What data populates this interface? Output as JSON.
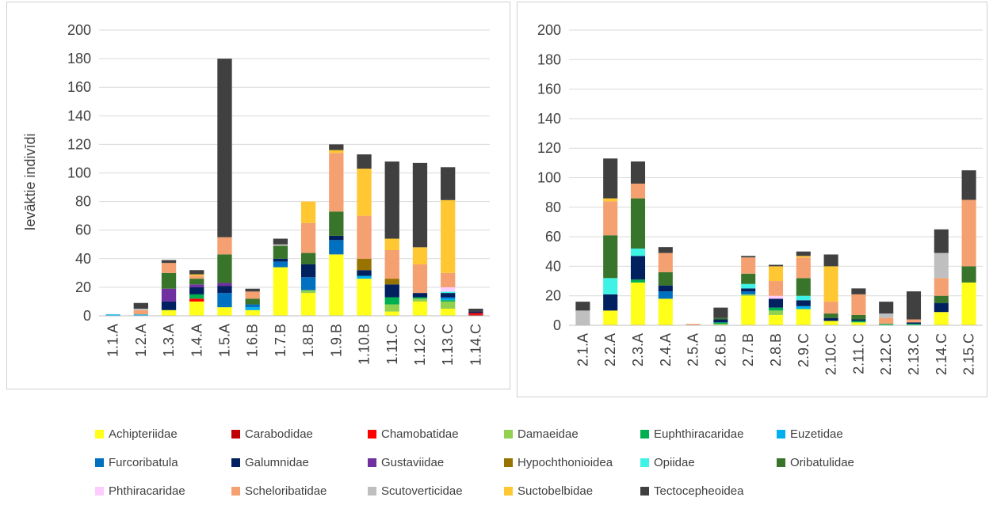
{
  "families": [
    "Achipteriidae",
    "Carabodidae",
    "Chamobatidae",
    "Damaeidae",
    "Euphthiracaridae",
    "Euzetidae",
    "Furcoribatula",
    "Galumnidae",
    "Gustaviidae",
    "Hypochthonioidea",
    "Opiidae",
    "Oribatulidae",
    "Phthiracaridae",
    "Scheloribatidae",
    "Scutoverticidae",
    "Suctobelbidae",
    "Tectocepheoidea"
  ],
  "colors": {
    "Achipteriidae": "#ffff1a",
    "Carabodidae": "#c00000",
    "Chamobatidae": "#ff0000",
    "Damaeidae": "#92d050",
    "Euphthiracaridae": "#00b050",
    "Euzetidae": "#00b0f0",
    "Furcoribatula": "#0070c0",
    "Galumnidae": "#002060",
    "Gustaviidae": "#7030a0",
    "Hypochthonioidea": "#997300",
    "Opiidae": "#3ff2e6",
    "Oribatulidae": "#38752b",
    "Phthiracaridae": "#ffccff",
    "Scheloribatidae": "#f4a070",
    "Scutoverticidae": "#bfbfbf",
    "Suctobelbidae": "#ffc832",
    "Tectocepheoidea": "#404040"
  },
  "chart_data": [
    {
      "type": "bar",
      "stacked": true,
      "title": "",
      "ylabel": "Ievāktie indivīdi",
      "ylim": [
        0,
        200
      ],
      "yticks": [
        0,
        20,
        40,
        60,
        80,
        100,
        120,
        140,
        160,
        180,
        200
      ],
      "grid": true,
      "categories": [
        "1.1.A",
        "1.2.A",
        "1.3.A",
        "1.4.A",
        "1.5.A",
        "1.6.B",
        "1.7.B",
        "1.8.B",
        "1.9.B",
        "1.10.B",
        "1.11.C",
        "1.12.C",
        "1.13.C",
        "1.14.C"
      ],
      "series": [
        {
          "name": "Achipteriidae",
          "values": [
            0,
            0,
            4,
            10,
            6,
            4,
            34,
            16,
            43,
            26,
            3,
            10,
            5,
            0
          ]
        },
        {
          "name": "Carabodidae",
          "values": [
            0,
            0,
            0,
            0,
            0,
            0,
            0,
            0,
            0,
            0,
            0,
            0,
            0,
            1
          ]
        },
        {
          "name": "Chamobatidae",
          "values": [
            0,
            0,
            0,
            2,
            0,
            0,
            0,
            0,
            0,
            0,
            0,
            0,
            0,
            1
          ]
        },
        {
          "name": "Damaeidae",
          "values": [
            0,
            0,
            0,
            0,
            0,
            0,
            0,
            2,
            0,
            0,
            5,
            2,
            5,
            0
          ]
        },
        {
          "name": "Euphthiracaridae",
          "values": [
            0,
            0,
            0,
            3,
            0,
            0,
            0,
            0,
            0,
            0,
            5,
            1,
            1,
            0
          ]
        },
        {
          "name": "Euzetidae",
          "values": [
            1,
            1,
            0,
            0,
            0,
            2,
            0,
            0,
            0,
            2,
            0,
            0,
            1,
            0
          ]
        },
        {
          "name": "Furcoribatula",
          "values": [
            0,
            0,
            0,
            0,
            10,
            2,
            4,
            9,
            10,
            0,
            0,
            0,
            1,
            0
          ]
        },
        {
          "name": "Galumnidae",
          "values": [
            0,
            0,
            6,
            5,
            5,
            0,
            2,
            9,
            3,
            4,
            9,
            3,
            3,
            1
          ]
        },
        {
          "name": "Gustaviidae",
          "values": [
            0,
            0,
            9,
            2,
            2,
            0,
            0,
            0,
            0,
            0,
            0,
            0,
            0,
            0
          ]
        },
        {
          "name": "Hypochthonioidea",
          "values": [
            0,
            0,
            0,
            0,
            0,
            0,
            0,
            0,
            0,
            8,
            4,
            0,
            0,
            0
          ]
        },
        {
          "name": "Opiidae",
          "values": [
            0,
            0,
            0,
            0,
            0,
            0,
            0,
            0,
            0,
            0,
            0,
            0,
            1,
            0
          ]
        },
        {
          "name": "Oribatulidae",
          "values": [
            0,
            0,
            11,
            4,
            20,
            4,
            9,
            8,
            17,
            0,
            0,
            0,
            0,
            0
          ]
        },
        {
          "name": "Phthiracaridae",
          "values": [
            0,
            0,
            0,
            0,
            0,
            0,
            0,
            0,
            0,
            0,
            0,
            0,
            3,
            0
          ]
        },
        {
          "name": "Scheloribatidae",
          "values": [
            0,
            3,
            7,
            2,
            12,
            5,
            0,
            21,
            41,
            30,
            20,
            20,
            10,
            0
          ]
        },
        {
          "name": "Scutoverticidae",
          "values": [
            0,
            1,
            0,
            0,
            0,
            0,
            1,
            0,
            0,
            0,
            0,
            0,
            0,
            0
          ]
        },
        {
          "name": "Suctobelbidae",
          "values": [
            0,
            0,
            0,
            1,
            0,
            0,
            0,
            15,
            2,
            33,
            8,
            12,
            51,
            0
          ]
        },
        {
          "name": "Tectocepheoidea",
          "values": [
            0,
            4,
            2,
            3,
            125,
            2,
            4,
            0,
            4,
            10,
            54,
            59,
            23,
            2
          ]
        }
      ]
    },
    {
      "type": "bar",
      "stacked": true,
      "title": "",
      "ylabel": "",
      "ylim": [
        0,
        200
      ],
      "yticks": [
        0,
        20,
        40,
        60,
        80,
        100,
        120,
        140,
        160,
        180,
        200
      ],
      "grid": true,
      "categories": [
        "2.1.A",
        "2.2.A",
        "2.3.A",
        "2.4.A",
        "2.5.A",
        "2.6.B",
        "2.7.B",
        "2.8.B",
        "2.9.C",
        "2.10.C",
        "2.11.C",
        "2.12.C",
        "2.13.C",
        "2.14.C",
        "2.15.C"
      ],
      "series": [
        {
          "name": "Achipteriidae",
          "values": [
            0,
            10,
            29,
            18,
            0,
            0,
            20,
            7,
            11,
            3,
            2,
            0,
            0,
            9,
            29
          ]
        },
        {
          "name": "Carabodidae",
          "values": [
            0,
            0,
            0,
            0,
            0,
            0,
            0,
            0,
            0,
            0,
            0,
            0,
            0,
            0,
            0
          ]
        },
        {
          "name": "Chamobatidae",
          "values": [
            0,
            0,
            0,
            0,
            0,
            0,
            0,
            0,
            0,
            0,
            0,
            0,
            0,
            0,
            0
          ]
        },
        {
          "name": "Damaeidae",
          "values": [
            0,
            0,
            0,
            0,
            0,
            1,
            1,
            3,
            0,
            0,
            0,
            0,
            0,
            0,
            0
          ]
        },
        {
          "name": "Euphthiracaridae",
          "values": [
            0,
            0,
            2,
            0,
            0,
            1,
            0,
            2,
            0,
            0,
            1,
            1,
            1,
            0,
            0
          ]
        },
        {
          "name": "Euzetidae",
          "values": [
            0,
            0,
            0,
            0,
            0,
            0,
            0,
            0,
            2,
            0,
            0,
            0,
            0,
            0,
            0
          ]
        },
        {
          "name": "Furcoribatula",
          "values": [
            0,
            0,
            0,
            5,
            0,
            0,
            2,
            0,
            0,
            0,
            0,
            0,
            0,
            0,
            0
          ]
        },
        {
          "name": "Galumnidae",
          "values": [
            0,
            11,
            16,
            4,
            0,
            2,
            2,
            6,
            4,
            2,
            1,
            0,
            1,
            6,
            0
          ]
        },
        {
          "name": "Gustaviidae",
          "values": [
            0,
            0,
            0,
            0,
            0,
            0,
            0,
            0,
            0,
            0,
            0,
            0,
            0,
            0,
            0
          ]
        },
        {
          "name": "Hypochthonioidea",
          "values": [
            0,
            0,
            0,
            0,
            0,
            0,
            0,
            0,
            0,
            0,
            0,
            0,
            0,
            0,
            0
          ]
        },
        {
          "name": "Opiidae",
          "values": [
            0,
            11,
            5,
            0,
            0,
            0,
            3,
            0,
            3,
            0,
            0,
            0,
            0,
            0,
            0
          ]
        },
        {
          "name": "Oribatulidae",
          "values": [
            0,
            29,
            34,
            9,
            0,
            1,
            7,
            0,
            12,
            3,
            3,
            0,
            0,
            5,
            11
          ]
        },
        {
          "name": "Phthiracaridae",
          "values": [
            0,
            0,
            0,
            0,
            0,
            0,
            0,
            2,
            0,
            0,
            0,
            0,
            0,
            0,
            0
          ]
        },
        {
          "name": "Scheloribatidae",
          "values": [
            0,
            23,
            10,
            13,
            1,
            0,
            11,
            10,
            14,
            8,
            14,
            4,
            2,
            12,
            45
          ]
        },
        {
          "name": "Scutoverticidae",
          "values": [
            10,
            0,
            0,
            0,
            0,
            0,
            0,
            0,
            0,
            0,
            0,
            3,
            0,
            17,
            0
          ]
        },
        {
          "name": "Suctobelbidae",
          "values": [
            0,
            2,
            0,
            0,
            0,
            0,
            0,
            10,
            1,
            24,
            0,
            0,
            0,
            0,
            0
          ]
        },
        {
          "name": "Tectocepheoidea",
          "values": [
            6,
            27,
            15,
            4,
            0,
            7,
            1,
            1,
            3,
            8,
            4,
            8,
            19,
            16,
            20
          ]
        }
      ]
    }
  ]
}
